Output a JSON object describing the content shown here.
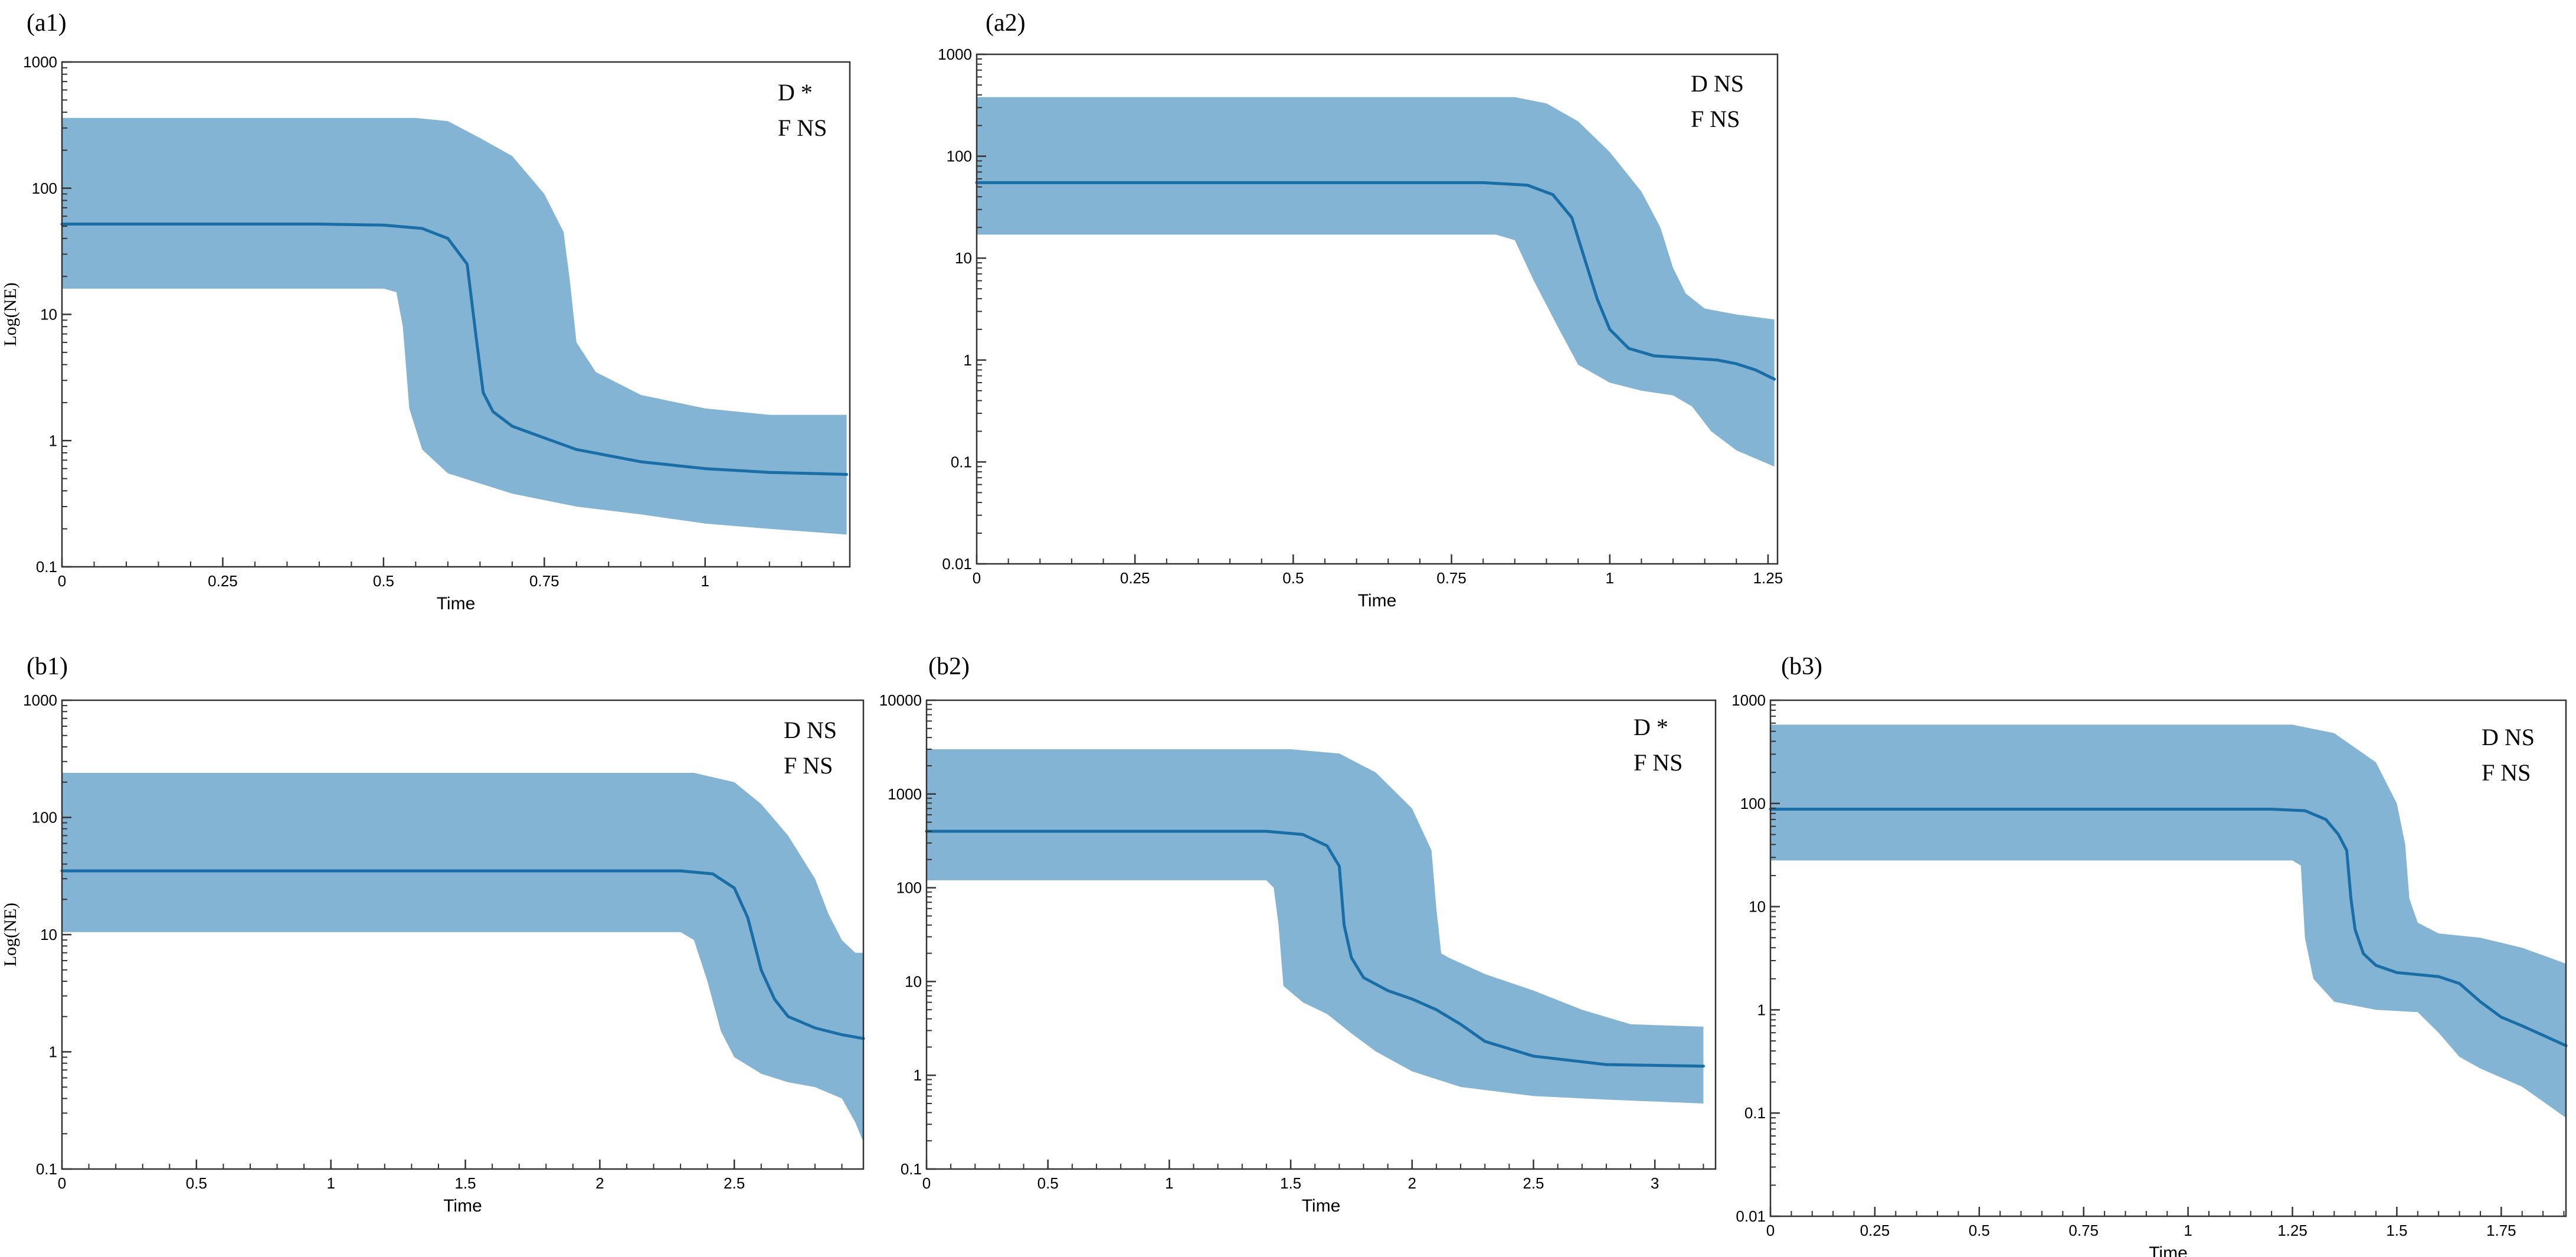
{
  "figure": {
    "colors": {
      "band": "#84b4d3",
      "line": "#1a6ea8",
      "axis": "#333333",
      "text": "#000000"
    }
  },
  "chart_data": [
    {
      "type": "area",
      "panel_label": "(a1)",
      "xlabel": "Time",
      "ylabel": "Log(NE)",
      "yscale": "log",
      "xlim": [
        0,
        1.225
      ],
      "ylim": [
        0.1,
        1000
      ],
      "xticks": [
        0,
        0.25,
        0.5,
        0.75,
        1
      ],
      "xtick_labels": [
        "0",
        "0.25",
        "0.5",
        "0.75",
        "1"
      ],
      "yticks": [
        0.1,
        1,
        10,
        100,
        1000
      ],
      "ytick_labels": [
        "0.1",
        "1",
        "10",
        "100",
        "1000"
      ],
      "stats": [
        "D *",
        "F NS"
      ],
      "series": [
        {
          "name": "median",
          "x": [
            0,
            0.4,
            0.5,
            0.56,
            0.6,
            0.63,
            0.645,
            0.655,
            0.67,
            0.7,
            0.75,
            0.8,
            0.9,
            1.0,
            1.1,
            1.22
          ],
          "y": [
            52,
            52,
            51,
            48,
            40,
            25,
            6,
            2.4,
            1.7,
            1.3,
            1.05,
            0.85,
            0.68,
            0.6,
            0.56,
            0.54
          ]
        },
        {
          "name": "upper_95_hpd",
          "x": [
            0,
            0.55,
            0.6,
            0.65,
            0.7,
            0.75,
            0.78,
            0.79,
            0.8,
            0.83,
            0.9,
            1.0,
            1.1,
            1.22
          ],
          "y": [
            360,
            360,
            340,
            250,
            180,
            90,
            45,
            18,
            6,
            3.5,
            2.3,
            1.8,
            1.6,
            1.6
          ]
        },
        {
          "name": "lower_95_hpd",
          "x": [
            0,
            0.5,
            0.52,
            0.53,
            0.54,
            0.56,
            0.6,
            0.7,
            0.8,
            0.9,
            1.0,
            1.1,
            1.22
          ],
          "y": [
            16,
            16,
            15,
            8,
            1.8,
            0.85,
            0.55,
            0.38,
            0.3,
            0.26,
            0.22,
            0.2,
            0.18
          ]
        }
      ]
    },
    {
      "type": "area",
      "panel_label": "(a2)",
      "xlabel": "Time",
      "ylabel": "",
      "yscale": "log",
      "xlim": [
        0,
        1.265
      ],
      "ylim": [
        0.01,
        1000
      ],
      "xticks": [
        0,
        0.25,
        0.5,
        0.75,
        1,
        1.25
      ],
      "xtick_labels": [
        "0",
        "0.25",
        "0.5",
        "0.75",
        "1",
        "1.25"
      ],
      "yticks": [
        0.01,
        0.1,
        1,
        10,
        100,
        1000
      ],
      "ytick_labels": [
        "0.01",
        "0.1",
        "1",
        "10",
        "100",
        "1000"
      ],
      "stats": [
        "D NS",
        "F NS"
      ],
      "series": [
        {
          "name": "median",
          "x": [
            0,
            0.8,
            0.87,
            0.91,
            0.94,
            0.96,
            0.98,
            1.0,
            1.03,
            1.07,
            1.12,
            1.17,
            1.2,
            1.23,
            1.26
          ],
          "y": [
            55,
            55,
            52,
            42,
            25,
            10,
            4,
            2,
            1.3,
            1.1,
            1.05,
            1.0,
            0.92,
            0.8,
            0.65
          ]
        },
        {
          "name": "upper_95_hpd",
          "x": [
            0,
            0.85,
            0.9,
            0.95,
            1.0,
            1.05,
            1.08,
            1.1,
            1.12,
            1.15,
            1.2,
            1.26
          ],
          "y": [
            380,
            380,
            330,
            220,
            110,
            45,
            20,
            8,
            4.5,
            3.2,
            2.8,
            2.5
          ]
        },
        {
          "name": "lower_95_hpd",
          "x": [
            0,
            0.82,
            0.85,
            0.88,
            0.92,
            0.95,
            1.0,
            1.05,
            1.1,
            1.13,
            1.16,
            1.2,
            1.26
          ],
          "y": [
            17,
            17,
            15,
            6,
            2,
            0.9,
            0.6,
            0.5,
            0.45,
            0.35,
            0.2,
            0.13,
            0.09
          ]
        }
      ]
    },
    {
      "type": "area",
      "panel_label": "(b1)",
      "xlabel": "Time",
      "ylabel": "Log(NE)",
      "yscale": "log",
      "xlim": [
        0,
        2.98
      ],
      "ylim": [
        0.1,
        1000
      ],
      "xticks": [
        0,
        0.5,
        1,
        1.5,
        2,
        2.5
      ],
      "xtick_labels": [
        "0",
        "0.5",
        "1",
        "1.5",
        "2",
        "2.5"
      ],
      "yticks": [
        0.1,
        1,
        10,
        100,
        1000
      ],
      "ytick_labels": [
        "0.1",
        "1",
        "10",
        "100",
        "1000"
      ],
      "stats": [
        "D NS",
        "F NS"
      ],
      "series": [
        {
          "name": "median",
          "x": [
            0,
            2.3,
            2.42,
            2.5,
            2.55,
            2.6,
            2.65,
            2.7,
            2.8,
            2.9,
            2.98
          ],
          "y": [
            35,
            35,
            33,
            25,
            14,
            5,
            2.8,
            2,
            1.6,
            1.4,
            1.3
          ]
        },
        {
          "name": "upper_95_hpd",
          "x": [
            0,
            2.35,
            2.5,
            2.6,
            2.7,
            2.8,
            2.85,
            2.9,
            2.95,
            2.98
          ],
          "y": [
            240,
            240,
            200,
            130,
            70,
            30,
            15,
            9,
            7,
            7
          ]
        },
        {
          "name": "lower_95_hpd",
          "x": [
            0,
            2.3,
            2.35,
            2.4,
            2.45,
            2.5,
            2.6,
            2.7,
            2.8,
            2.9,
            2.95,
            2.98
          ],
          "y": [
            10.5,
            10.5,
            9,
            4,
            1.5,
            0.9,
            0.65,
            0.55,
            0.5,
            0.4,
            0.25,
            0.17
          ]
        }
      ]
    },
    {
      "type": "area",
      "panel_label": "(b2)",
      "xlabel": "Time",
      "ylabel": "",
      "yscale": "log",
      "xlim": [
        0,
        3.25
      ],
      "ylim": [
        0.1,
        10000
      ],
      "xticks": [
        0,
        0.5,
        1,
        1.5,
        2,
        2.5,
        3
      ],
      "xtick_labels": [
        "0",
        "0.5",
        "1",
        "1.5",
        "2",
        "2.5",
        "3"
      ],
      "yticks": [
        0.1,
        1,
        10,
        100,
        1000,
        10000
      ],
      "ytick_labels": [
        "0.1",
        "1",
        "10",
        "100",
        "1000",
        "10000"
      ],
      "stats": [
        "D *",
        "F NS"
      ],
      "series": [
        {
          "name": "median",
          "x": [
            0,
            1.4,
            1.55,
            1.65,
            1.7,
            1.72,
            1.75,
            1.8,
            1.9,
            2.0,
            2.1,
            2.2,
            2.3,
            2.5,
            2.8,
            3.2
          ],
          "y": [
            400,
            400,
            370,
            280,
            170,
            40,
            18,
            11,
            8,
            6.5,
            5,
            3.5,
            2.3,
            1.6,
            1.3,
            1.25
          ]
        },
        {
          "name": "upper_95_hpd",
          "x": [
            0,
            1.5,
            1.7,
            1.85,
            2.0,
            2.08,
            2.1,
            2.12,
            2.15,
            2.3,
            2.5,
            2.7,
            2.9,
            3.2
          ],
          "y": [
            3000,
            3000,
            2700,
            1700,
            700,
            250,
            60,
            20,
            18,
            12,
            8,
            5,
            3.5,
            3.3
          ]
        },
        {
          "name": "lower_95_hpd",
          "x": [
            0,
            1.4,
            1.43,
            1.45,
            1.47,
            1.55,
            1.65,
            1.75,
            1.85,
            2.0,
            2.2,
            2.5,
            2.8,
            3.2
          ],
          "y": [
            120,
            120,
            100,
            40,
            9,
            6,
            4.5,
            2.8,
            1.8,
            1.1,
            0.75,
            0.6,
            0.55,
            0.5
          ]
        }
      ]
    },
    {
      "type": "area",
      "panel_label": "(b3)",
      "xlabel": "Time",
      "ylabel": "",
      "yscale": "log",
      "xlim": [
        0,
        1.905
      ],
      "ylim": [
        0.01,
        1000
      ],
      "xticks": [
        0,
        0.25,
        0.5,
        0.75,
        1,
        1.25,
        1.5,
        1.75
      ],
      "xtick_labels": [
        "0",
        "0.25",
        "0.5",
        "0.75",
        "1",
        "1.25",
        "1.5",
        "1.75"
      ],
      "yticks": [
        0.01,
        0.1,
        1,
        10,
        100,
        1000
      ],
      "ytick_labels": [
        "0.01",
        "0.1",
        "1",
        "10",
        "100",
        "1000"
      ],
      "stats": [
        "D NS",
        "F NS"
      ],
      "series": [
        {
          "name": "median",
          "x": [
            0,
            1.2,
            1.28,
            1.33,
            1.36,
            1.38,
            1.39,
            1.4,
            1.42,
            1.45,
            1.5,
            1.6,
            1.65,
            1.7,
            1.75,
            1.8,
            1.905
          ],
          "y": [
            88,
            88,
            85,
            70,
            50,
            35,
            12,
            6,
            3.5,
            2.7,
            2.3,
            2.1,
            1.8,
            1.2,
            0.85,
            0.7,
            0.45
          ]
        },
        {
          "name": "upper_95_hpd",
          "x": [
            0,
            1.25,
            1.35,
            1.45,
            1.5,
            1.52,
            1.53,
            1.55,
            1.6,
            1.7,
            1.8,
            1.905
          ],
          "y": [
            580,
            580,
            480,
            250,
            100,
            40,
            12,
            7,
            5.5,
            5,
            4,
            2.8
          ]
        },
        {
          "name": "lower_95_hpd",
          "x": [
            0,
            1.25,
            1.27,
            1.28,
            1.3,
            1.35,
            1.45,
            1.55,
            1.6,
            1.65,
            1.7,
            1.8,
            1.905
          ],
          "y": [
            28,
            28,
            25,
            5,
            2,
            1.2,
            1.0,
            0.95,
            0.6,
            0.35,
            0.27,
            0.18,
            0.09
          ]
        }
      ]
    }
  ]
}
